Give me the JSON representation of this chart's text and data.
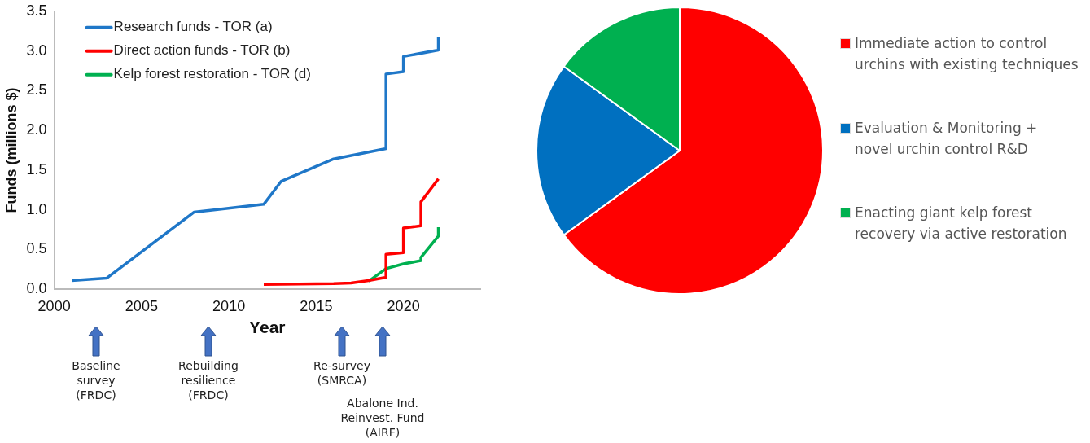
{
  "chart_data": [
    {
      "type": "line",
      "xlabel": "Year",
      "ylabel": "Funds (millions $)",
      "xlim": [
        2000,
        2024.4
      ],
      "xticks": [
        2000,
        2005,
        2010,
        2015,
        2020
      ],
      "ylim": [
        0,
        3.5
      ],
      "yticks": [
        {
          "value": 0,
          "label": "0.0"
        },
        {
          "value": 0.5,
          "label": "0.5"
        },
        {
          "value": 1,
          "label": "1.0"
        },
        {
          "value": 1.5,
          "label": "1.5"
        },
        {
          "value": 2,
          "label": "2.0"
        },
        {
          "value": 2.5,
          "label": "2.5"
        },
        {
          "value": 3,
          "label": "3.0"
        },
        {
          "value": 3.5,
          "label": "3.5"
        }
      ],
      "grid": false,
      "legend": "top left",
      "marker": "none",
      "line_style": "solid",
      "series": [
        {
          "name": "Research funds - TOR (a)",
          "color": "#1f77c8",
          "x": [
            2001,
            2003,
            2008,
            2012,
            2013,
            2016,
            2019,
            2019,
            2020,
            2020,
            2022,
            2022
          ],
          "values": [
            0.11,
            0.14,
            0.97,
            1.07,
            1.36,
            1.64,
            1.77,
            2.71,
            2.74,
            2.93,
            3.01,
            3.18
          ]
        },
        {
          "name": "Direct action funds - TOR (b)",
          "color": "#ff0000",
          "x": [
            2012,
            2016,
            2017,
            2018,
            2019,
            2019,
            2020,
            2020,
            2021,
            2021,
            2022
          ],
          "values": [
            0.06,
            0.07,
            0.08,
            0.11,
            0.15,
            0.44,
            0.46,
            0.77,
            0.8,
            1.1,
            1.39
          ]
        },
        {
          "name": "Kelp forest restoration - TOR (d)",
          "color": "#00b050",
          "x": [
            2018,
            2019,
            2020,
            2021,
            2021,
            2022,
            2022
          ],
          "values": [
            0.1,
            0.26,
            0.32,
            0.36,
            0.4,
            0.67,
            0.78
          ]
        }
      ],
      "annotations": [
        "Baseline survey (FRDC)",
        "Rebuilding resilience (FRDC)",
        "Re-survey (SMRCA)",
        "Abalone Ind. Reinvest. Fund (AIRF)"
      ]
    },
    {
      "type": "pie",
      "legend": "right",
      "categories": [
        "Immediate action to control urchins with existing techniques",
        "Evaluation & Monitoring + novel urchin control R&D",
        "Enacting giant kelp forest recovery via active restoration"
      ],
      "values": [
        65,
        20,
        15
      ],
      "colors": [
        "#ff0000",
        "#0070c0",
        "#00b050"
      ]
    }
  ]
}
